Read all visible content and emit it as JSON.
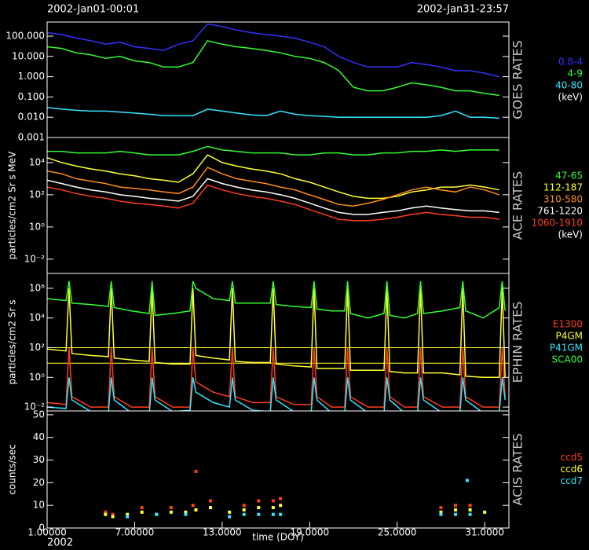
{
  "header": {
    "left": "2002-Jan01-00:01",
    "right": "2002-Jan31-23:57"
  },
  "footer": "2002",
  "chart_data": [
    {
      "type": "line",
      "title": "GOES RATES",
      "yscale": "log",
      "xlim": [
        1,
        32.66
      ],
      "ylim": [
        0.001,
        500
      ],
      "yticks": [
        {
          "value": 0.001,
          "label": "0.001"
        },
        {
          "value": 0.01,
          "label": "0.010"
        },
        {
          "value": 0.1,
          "label": "0.100"
        },
        {
          "value": 1,
          "label": "1.000"
        },
        {
          "value": 10,
          "label": "10.000"
        },
        {
          "value": 100,
          "label": "100.000"
        }
      ],
      "legend_unit": "(keV)",
      "x": [
        1,
        2,
        3,
        4,
        5,
        6,
        7,
        8,
        9,
        10,
        11,
        12,
        13,
        14,
        15,
        16,
        17,
        18,
        19,
        20,
        21,
        22,
        23,
        24,
        25,
        26,
        27,
        28,
        29,
        30,
        31,
        32
      ],
      "series": [
        {
          "name": "0.8-4",
          "color": "#3232ff",
          "values": [
            150,
            120,
            80,
            60,
            40,
            50,
            30,
            25,
            20,
            40,
            60,
            400,
            300,
            200,
            150,
            120,
            100,
            80,
            50,
            30,
            10,
            5,
            3,
            3,
            3,
            5,
            4,
            3,
            2,
            2,
            1.5,
            1.0
          ]
        },
        {
          "name": "4-9",
          "color": "#32ff32",
          "values": [
            30,
            25,
            15,
            12,
            8,
            10,
            6,
            5,
            3,
            3,
            5,
            60,
            40,
            30,
            25,
            20,
            15,
            10,
            8,
            5,
            2,
            0.3,
            0.2,
            0.2,
            0.3,
            0.5,
            0.4,
            0.3,
            0.2,
            0.2,
            0.15,
            0.12
          ]
        },
        {
          "name": "40-80",
          "color": "#32e6ff",
          "values": [
            0.03,
            0.025,
            0.022,
            0.02,
            0.02,
            0.018,
            0.016,
            0.014,
            0.012,
            0.012,
            0.012,
            0.025,
            0.02,
            0.016,
            0.013,
            0.012,
            0.02,
            0.014,
            0.012,
            0.011,
            0.01,
            0.01,
            0.01,
            0.01,
            0.01,
            0.01,
            0.01,
            0.012,
            0.02,
            0.01,
            0.01,
            0.009
          ]
        }
      ]
    },
    {
      "type": "line",
      "title": "ACE RATES",
      "ylabel": "particles/cm2 Sr s MeV",
      "yscale": "log",
      "xlim": [
        1,
        32.66
      ],
      "ylim": [
        0.0013,
        360000
      ],
      "yticks": [
        {
          "value": 0.01,
          "label": "10⁻²"
        },
        {
          "value": 1,
          "label": "10⁰"
        },
        {
          "value": 100,
          "label": "10²"
        },
        {
          "value": 10000,
          "label": "10⁴"
        }
      ],
      "legend_unit": "(keV)",
      "x": [
        1,
        2,
        3,
        4,
        5,
        6,
        7,
        8,
        9,
        10,
        11,
        12,
        13,
        14,
        15,
        16,
        17,
        18,
        19,
        20,
        21,
        22,
        23,
        24,
        25,
        26,
        27,
        28,
        29,
        30,
        31,
        32
      ],
      "series": [
        {
          "name": "47-65",
          "color": "#32ff32",
          "values": [
            50000,
            50000,
            40000,
            40000,
            40000,
            50000,
            40000,
            30000,
            30000,
            30000,
            50000,
            100000,
            60000,
            50000,
            40000,
            40000,
            40000,
            30000,
            30000,
            40000,
            40000,
            30000,
            30000,
            40000,
            40000,
            50000,
            50000,
            60000,
            50000,
            60000,
            60000,
            60000
          ]
        },
        {
          "name": "112-187",
          "color": "#ffff32",
          "values": [
            20000,
            10000,
            6000,
            4000,
            3000,
            2000,
            1500,
            1000,
            800,
            600,
            2000,
            30000,
            10000,
            6000,
            4000,
            3000,
            2000,
            1000,
            600,
            300,
            150,
            80,
            60,
            60,
            80,
            150,
            200,
            300,
            300,
            400,
            300,
            200
          ]
        },
        {
          "name": "310-580",
          "color": "#ff8c1e",
          "values": [
            3000,
            2000,
            1000,
            700,
            500,
            300,
            250,
            200,
            150,
            120,
            300,
            5000,
            2000,
            1000,
            700,
            500,
            300,
            200,
            100,
            50,
            25,
            20,
            30,
            50,
            100,
            200,
            300,
            200,
            150,
            300,
            200,
            100
          ]
        },
        {
          "name": "761-1220",
          "color": "#ffffff",
          "values": [
            800,
            500,
            300,
            200,
            150,
            100,
            80,
            60,
            50,
            40,
            80,
            1000,
            500,
            300,
            200,
            150,
            100,
            60,
            30,
            15,
            8,
            6,
            6,
            8,
            10,
            15,
            20,
            15,
            12,
            10,
            10,
            8
          ]
        },
        {
          "name": "1060-1910",
          "color": "#ff3c1e",
          "values": [
            300,
            200,
            120,
            80,
            60,
            40,
            30,
            25,
            20,
            15,
            30,
            400,
            200,
            120,
            80,
            60,
            40,
            25,
            12,
            6,
            3,
            2.5,
            2.5,
            3,
            4,
            6,
            8,
            6,
            5,
            4,
            4,
            3
          ]
        }
      ]
    },
    {
      "type": "line",
      "title": "EPHIN RATES",
      "ylabel": "particles/cm2 Sr s",
      "yscale": "log",
      "xlim": [
        1,
        32.66
      ],
      "ylim": [
        0.0055,
        10000000
      ],
      "yticks": [
        {
          "value": 0.01,
          "label": "10⁻²"
        },
        {
          "value": 1,
          "label": "10⁰"
        },
        {
          "value": 100,
          "label": "10²"
        },
        {
          "value": 10000,
          "label": "10⁴"
        },
        {
          "value": 1000000,
          "label": "10⁶"
        }
      ],
      "reference_lines": [
        100,
        9
      ],
      "reference_color": "#ffff32",
      "x": [
        1,
        2.3,
        2.5,
        2.7,
        4.0,
        5.2,
        5.4,
        5.6,
        6.8,
        8.0,
        8.2,
        8.4,
        9.6,
        10.8,
        11.0,
        11.2,
        12.4,
        13.5,
        13.7,
        13.9,
        15.1,
        16.3,
        16.5,
        16.7,
        17.9,
        19.1,
        19.3,
        19.5,
        20.5,
        21.4,
        21.6,
        21.8,
        23.0,
        24.1,
        24.3,
        24.5,
        25.5,
        26.4,
        26.6,
        26.8,
        28.1,
        29.3,
        29.5,
        29.7,
        30.9,
        32.0,
        32.2,
        32.4
      ],
      "series": [
        {
          "name": "E1300",
          "color": "#ff3c1e",
          "values": [
            0.02,
            0.015,
            100,
            0.05,
            0.01,
            0.01,
            100,
            0.05,
            0.01,
            0.01,
            100,
            0.05,
            0.01,
            0.01,
            100,
            0.5,
            0.1,
            0.05,
            100,
            0.05,
            0.02,
            0.02,
            100,
            0.05,
            0.015,
            0.015,
            100,
            0.05,
            0.01,
            0.01,
            100,
            0.05,
            0.01,
            0.01,
            100,
            0.05,
            0.01,
            0.01,
            100,
            0.05,
            0.01,
            0.01,
            100,
            0.05,
            0.01,
            0.01,
            100,
            0.05
          ]
        },
        {
          "name": "P4GM",
          "color": "#ffff32",
          "values": [
            80,
            60,
            1000000,
            40,
            30,
            25,
            1000000,
            20,
            15,
            12,
            1000000,
            10,
            8,
            8,
            1000000,
            30,
            20,
            15,
            1000000,
            12,
            10,
            10,
            1000000,
            8,
            6,
            5,
            1000000,
            4,
            4,
            4,
            1000000,
            3,
            3,
            3,
            1000000,
            2.5,
            2,
            2,
            1000000,
            2,
            2,
            1.5,
            1000000,
            1.2,
            1,
            1,
            1000000,
            1
          ]
        },
        {
          "name": "P41GM",
          "color": "#32e6ff",
          "values": [
            0.01,
            0.008,
            1,
            0.03,
            0.005,
            0.004,
            1,
            0.03,
            0.004,
            0.003,
            1,
            0.03,
            0.005,
            0.006,
            1,
            0.1,
            0.02,
            0.01,
            1,
            0.03,
            0.006,
            0.005,
            1,
            0.03,
            0.005,
            0.004,
            1,
            0.03,
            0.004,
            0.004,
            1,
            0.03,
            0.004,
            0.004,
            1,
            0.03,
            0.004,
            0.004,
            1,
            0.03,
            0.004,
            0.004,
            1,
            0.03,
            0.004,
            0.004,
            1,
            0.03
          ]
        },
        {
          "name": "SCA00",
          "color": "#32ff32",
          "values": [
            200000,
            150000,
            3000000,
            100000,
            80000,
            60000,
            3000000,
            50000,
            30000,
            20000,
            3000000,
            15000,
            20000,
            30000,
            3000000,
            1000000,
            200000,
            150000,
            3000000,
            100000,
            100000,
            100000,
            3000000,
            80000,
            60000,
            50000,
            3000000,
            40000,
            30000,
            30000,
            3000000,
            20000,
            10000,
            20000,
            3000000,
            15000,
            10000,
            20000,
            3000000,
            20000,
            30000,
            50000,
            3000000,
            30000,
            10000,
            50000,
            3000000,
            30000
          ]
        }
      ]
    },
    {
      "type": "scatter",
      "title": "ACIS RATES",
      "ylabel": "counts/sec",
      "xlabel": "time (DOY)",
      "xlim": [
        1,
        32.66
      ],
      "ylim": [
        0,
        51.7
      ],
      "yticks": [
        0,
        10,
        20,
        30,
        40,
        50
      ],
      "xticks": [
        {
          "value": 1,
          "label": "1.00000"
        },
        {
          "value": 7,
          "label": "7.00000"
        },
        {
          "value": 13,
          "label": "13.0000"
        },
        {
          "value": 19,
          "label": "19.0000"
        },
        {
          "value": 25,
          "label": "25.0000"
        },
        {
          "value": 31,
          "label": "31.0000"
        }
      ],
      "series": [
        {
          "name": "ccd5",
          "color": "#ff3c1e",
          "x": [
            5.0,
            5.5,
            7.5,
            9.5,
            11.0,
            11.2,
            12.2,
            14.5,
            15.5,
            16.5,
            17.0,
            28.0,
            29.0,
            30.0
          ],
          "values": [
            7,
            6,
            9,
            9,
            10,
            25,
            12,
            10,
            12,
            12,
            13,
            9,
            10,
            10
          ]
        },
        {
          "name": "ccd6",
          "color": "#ffff32",
          "x": [
            5.0,
            5.5,
            6.5,
            7.5,
            8.5,
            9.5,
            10.5,
            11.2,
            12.2,
            13.5,
            14.5,
            15.5,
            16.5,
            17.0,
            28.0,
            29.0,
            30.0,
            31.0
          ],
          "values": [
            6,
            5,
            6,
            7,
            6,
            7,
            7,
            8,
            9,
            7,
            8,
            9,
            9,
            10,
            7,
            8,
            8,
            7
          ]
        },
        {
          "name": "ccd7",
          "color": "#32e6ff",
          "x": [
            6.5,
            8.5,
            10.5,
            13.5,
            14.5,
            15.5,
            16.5,
            17.0,
            28.0,
            29.0,
            29.8,
            30.0
          ],
          "values": [
            5,
            6,
            6,
            5,
            6,
            6,
            6,
            6,
            6,
            6,
            21,
            6
          ]
        }
      ]
    }
  ]
}
